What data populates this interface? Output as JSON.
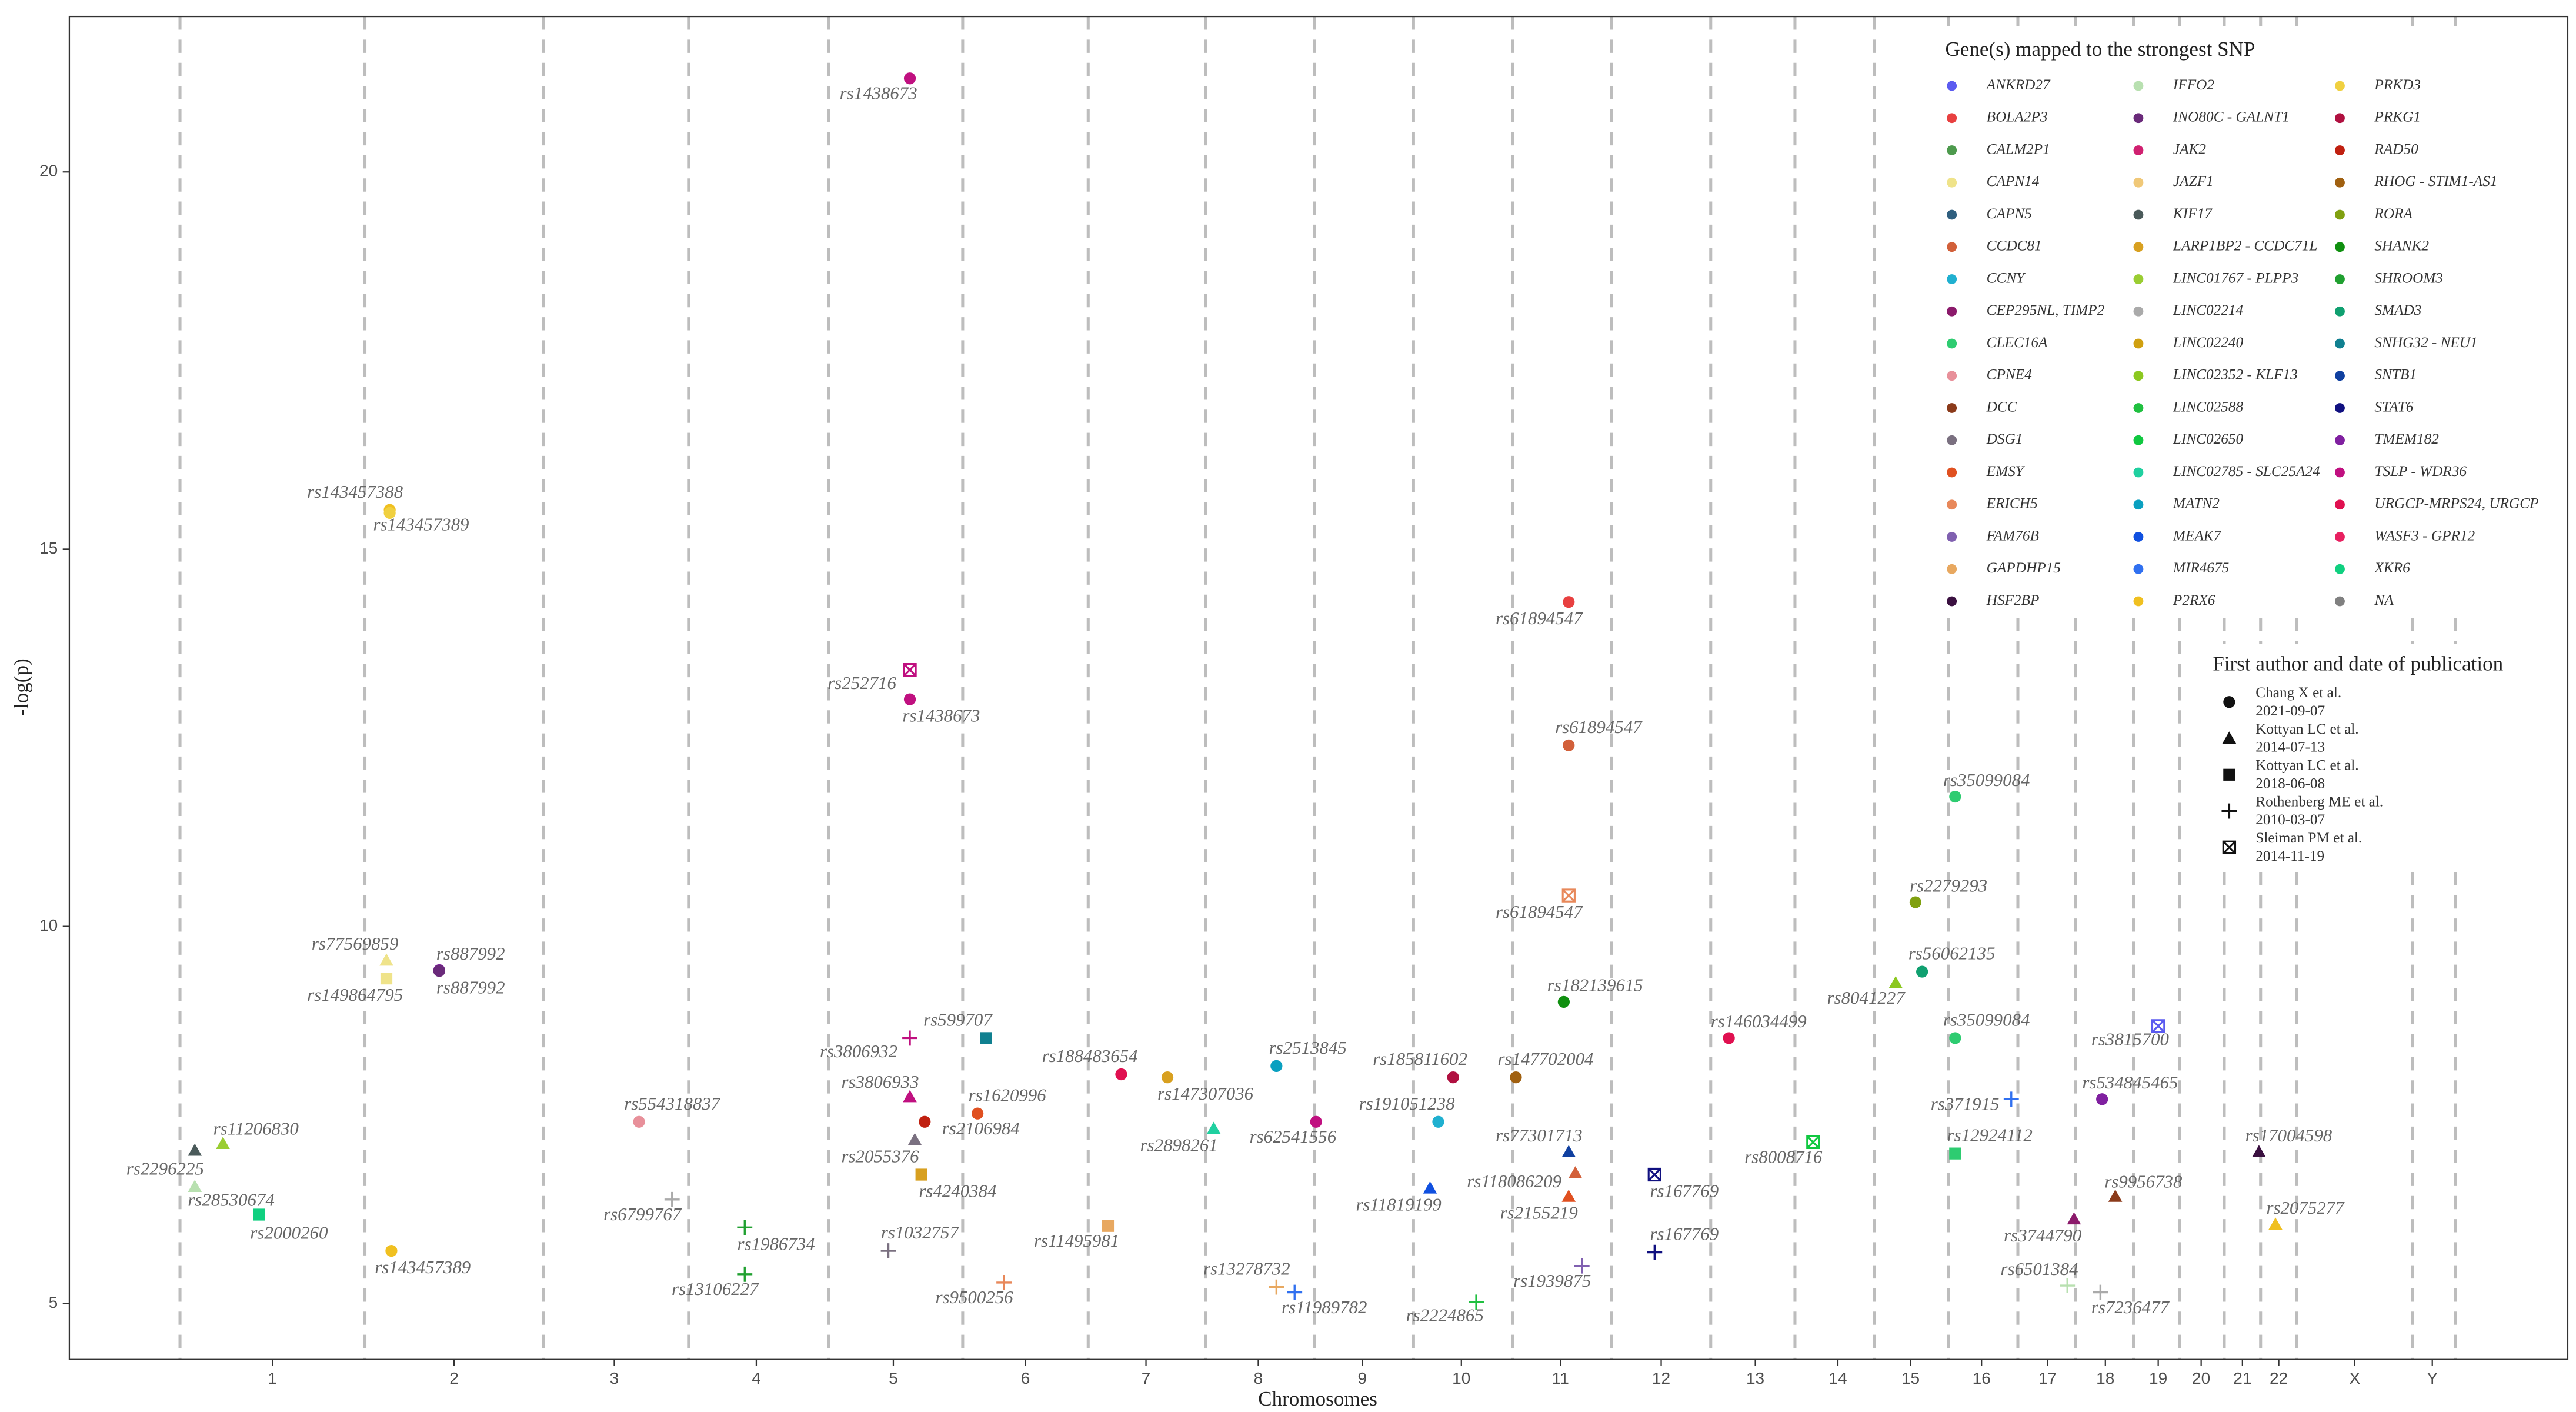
{
  "chart_data": {
    "type": "scatter",
    "xlabel": "Chromosomes",
    "ylabel": "-log(p)",
    "xlim": [
      42,
      1555
    ],
    "ylim": [
      4.26,
      22.06
    ],
    "yticks": [
      5,
      10,
      15,
      20
    ],
    "xticks": [
      {
        "value": 165,
        "label": "1"
      },
      {
        "value": 275,
        "label": "2"
      },
      {
        "value": 372,
        "label": "3"
      },
      {
        "value": 458,
        "label": "4"
      },
      {
        "value": 541,
        "label": "5"
      },
      {
        "value": 621,
        "label": "6"
      },
      {
        "value": 694,
        "label": "7"
      },
      {
        "value": 762,
        "label": "8"
      },
      {
        "value": 825,
        "label": "9"
      },
      {
        "value": 885,
        "label": "10"
      },
      {
        "value": 945,
        "label": "11"
      },
      {
        "value": 1006,
        "label": "12"
      },
      {
        "value": 1063,
        "label": "13"
      },
      {
        "value": 1113,
        "label": "14"
      },
      {
        "value": 1157,
        "label": "15"
      },
      {
        "value": 1200,
        "label": "16"
      },
      {
        "value": 1240,
        "label": "17"
      },
      {
        "value": 1275,
        "label": "18"
      },
      {
        "value": 1307,
        "label": "19"
      },
      {
        "value": 1333,
        "label": "20"
      },
      {
        "value": 1358,
        "label": "21"
      },
      {
        "value": 1380,
        "label": "22"
      },
      {
        "value": 1426,
        "label": "X"
      },
      {
        "value": 1473,
        "label": "Y"
      }
    ],
    "vlines": [
      109,
      221,
      329,
      417,
      502,
      583,
      659,
      730,
      796,
      856,
      916,
      976,
      1036,
      1087,
      1135,
      1180,
      1222,
      1257,
      1292,
      1320,
      1347,
      1369,
      1391,
      1461,
      1487
    ],
    "gene_legend_title": "Gene(s) mapped to the strongest SNP",
    "genes": [
      {
        "name": "ANKRD27",
        "color": "#5b5bf0"
      },
      {
        "name": "BOLA2P3",
        "color": "#e84040"
      },
      {
        "name": "CALM2P1",
        "color": "#4d9a4d"
      },
      {
        "name": "CAPN14",
        "color": "#efe38a"
      },
      {
        "name": "CAPN5",
        "color": "#2f5f7f"
      },
      {
        "name": "CCDC81",
        "color": "#d2603a"
      },
      {
        "name": "CCNY",
        "color": "#20b0d0"
      },
      {
        "name": "CEP295NL, TIMP2",
        "color": "#8b1a6b"
      },
      {
        "name": "CLEC16A",
        "color": "#2ecc71"
      },
      {
        "name": "CPNE4",
        "color": "#e8909a"
      },
      {
        "name": "DCC",
        "color": "#8b3a1a"
      },
      {
        "name": "DSG1",
        "color": "#7a7080"
      },
      {
        "name": "EMSY",
        "color": "#e05020"
      },
      {
        "name": "ERICH5",
        "color": "#e8885a"
      },
      {
        "name": "FAM76B",
        "color": "#8060b0"
      },
      {
        "name": "GAPDHP15",
        "color": "#e8a860"
      },
      {
        "name": "HSF2BP",
        "color": "#3a1040"
      },
      {
        "name": "IFFO2",
        "color": "#b8e0b0"
      },
      {
        "name": "INO80C - GALNT1",
        "color": "#6a2a7a"
      },
      {
        "name": "JAK2",
        "color": "#d02070"
      },
      {
        "name": "JAZF1",
        "color": "#f0c878"
      },
      {
        "name": "KIF17",
        "color": "#4a5a5a"
      },
      {
        "name": "LARP1BP2 - CCDC71L",
        "color": "#d8a020"
      },
      {
        "name": "LINC01767 - PLPP3",
        "color": "#9acd32"
      },
      {
        "name": "LINC02214",
        "color": "#aaaaaa"
      },
      {
        "name": "LINC02240",
        "color": "#d0a010"
      },
      {
        "name": "LINC02352 - KLF13",
        "color": "#8cc820"
      },
      {
        "name": "LINC02588",
        "color": "#20c040"
      },
      {
        "name": "LINC02650",
        "color": "#10c840"
      },
      {
        "name": "LINC02785 - SLC25A24",
        "color": "#20d0a0"
      },
      {
        "name": "MATN2",
        "color": "#0aa0c0"
      },
      {
        "name": "MEAK7",
        "color": "#1050e0"
      },
      {
        "name": "MIR4675",
        "color": "#3070f0"
      },
      {
        "name": "P2RX6",
        "color": "#f0c020"
      },
      {
        "name": "PRKD3",
        "color": "#f0d040"
      },
      {
        "name": "PRKG1",
        "color": "#b01040"
      },
      {
        "name": "RAD50",
        "color": "#c02010"
      },
      {
        "name": "RHOG - STIM1-AS1",
        "color": "#a06010"
      },
      {
        "name": "RORA",
        "color": "#80a010"
      },
      {
        "name": "SHANK2",
        "color": "#109010"
      },
      {
        "name": "SHROOM3",
        "color": "#20a030"
      },
      {
        "name": "SMAD3",
        "color": "#10a070"
      },
      {
        "name": "SNHG32 - NEU1",
        "color": "#108090"
      },
      {
        "name": "SNTB1",
        "color": "#1040a0"
      },
      {
        "name": "STAT6",
        "color": "#101080"
      },
      {
        "name": "TMEM182",
        "color": "#8020a0"
      },
      {
        "name": "TSLP - WDR36",
        "color": "#c01080"
      },
      {
        "name": "URGCP-MRPS24, URGCP",
        "color": "#e01050"
      },
      {
        "name": "WASF3 - GPR12",
        "color": "#e82060"
      },
      {
        "name": "XKR6",
        "color": "#10d080"
      },
      {
        "name": "NA",
        "color": "#808080"
      }
    ],
    "author_legend_title": "First author and date of publication",
    "authors": [
      {
        "name": "Chang X et al.",
        "date": "2021-09-07",
        "shape": "circle"
      },
      {
        "name": "Kottyan LC et al.",
        "date": "2014-07-13",
        "shape": "triangle"
      },
      {
        "name": "Kottyan LC et al.",
        "date": "2018-06-08",
        "shape": "square"
      },
      {
        "name": "Rothenberg ME et al.",
        "date": "2010-03-07",
        "shape": "plus"
      },
      {
        "name": "Sleiman PM et al.",
        "date": "2014-11-19",
        "shape": "boxed-x"
      }
    ],
    "points": [
      {
        "label": "rs2296225",
        "x": 118,
        "y": 7.03,
        "gene": "KIF17",
        "date": "2014-07-13"
      },
      {
        "label": "rs28530674",
        "x": 118,
        "y": 6.55,
        "gene": "IFFO2",
        "date": "2014-07-13"
      },
      {
        "label": "rs11206830",
        "x": 135,
        "y": 7.12,
        "gene": "LINC01767 - PLPP3",
        "date": "2014-07-13"
      },
      {
        "label": "rs2000260",
        "x": 157,
        "y": 6.18,
        "gene": "XKR6",
        "date": "2018-06-08"
      },
      {
        "label": "rs143457388",
        "x": 236,
        "y": 15.52,
        "gene": "P2RX6",
        "date": "2021-09-07"
      },
      {
        "label": "rs143457389",
        "x": 236,
        "y": 15.48,
        "gene": "PRKD3",
        "date": "2021-09-07"
      },
      {
        "label": "rs77569859",
        "x": 234,
        "y": 9.55,
        "gene": "CAPN14",
        "date": "2014-07-13"
      },
      {
        "label": "rs149864795",
        "x": 234,
        "y": 9.31,
        "gene": "CAPN14",
        "date": "2018-06-08"
      },
      {
        "label": "rs887992",
        "x": 266,
        "y": 9.42,
        "gene": "TMEM182",
        "date": "2021-09-07"
      },
      {
        "label": "rs887992",
        "x": 266,
        "y": 9.41,
        "gene": "INO80C - GALNT1",
        "date": "2021-09-07"
      },
      {
        "label": "rs143457389",
        "x": 237,
        "y": 5.7,
        "gene": "P2RX6",
        "date": "2021-09-07"
      },
      {
        "label": "rs554318837",
        "x": 387,
        "y": 7.41,
        "gene": "CPNE4",
        "date": "2021-09-07"
      },
      {
        "label": "rs6799767",
        "x": 407,
        "y": 6.38,
        "gene": "LINC02214",
        "date": "2010-03-07"
      },
      {
        "label": "rs1986734",
        "x": 451,
        "y": 6.01,
        "gene": "SHROOM3",
        "date": "2010-03-07"
      },
      {
        "label": "rs13106227",
        "x": 451,
        "y": 5.39,
        "gene": "SHROOM3",
        "date": "2010-03-07"
      },
      {
        "label": "rs1438673",
        "x": 551,
        "y": 21.24,
        "gene": "TSLP - WDR36",
        "date": "2021-09-07"
      },
      {
        "label": "rs252716",
        "x": 551,
        "y": 13.4,
        "gene": "TSLP - WDR36",
        "date": "2014-11-19"
      },
      {
        "label": "rs1438673",
        "x": 551,
        "y": 13.01,
        "gene": "TSLP - WDR36",
        "date": "2021-09-07"
      },
      {
        "label": "rs3806932",
        "x": 551,
        "y": 8.52,
        "gene": "TSLP - WDR36",
        "date": "2010-03-07"
      },
      {
        "label": "rs599707",
        "x": 597,
        "y": 8.52,
        "gene": "SNHG32 - NEU1",
        "date": "2018-06-08"
      },
      {
        "label": "rs3806933",
        "x": 551,
        "y": 7.74,
        "gene": "TSLP - WDR36",
        "date": "2014-07-13"
      },
      {
        "label": "rs1620996",
        "x": 592,
        "y": 7.52,
        "gene": "EMSY",
        "date": "2021-09-07"
      },
      {
        "label": "rs2106984",
        "x": 560,
        "y": 7.41,
        "gene": "RAD50",
        "date": "2021-09-07"
      },
      {
        "label": "rs2055376",
        "x": 554,
        "y": 7.17,
        "gene": "DSG1",
        "date": "2014-07-13"
      },
      {
        "label": "rs4240384",
        "x": 558,
        "y": 6.71,
        "gene": "LARP1BP2 - CCDC71L",
        "date": "2018-06-08"
      },
      {
        "label": "rs1032757",
        "x": 538,
        "y": 5.7,
        "gene": "DSG1",
        "date": "2010-03-07"
      },
      {
        "label": "rs9500256",
        "x": 608,
        "y": 5.28,
        "gene": "ERICH5",
        "date": "2010-03-07"
      },
      {
        "label": "rs188483654",
        "x": 679,
        "y": 8.04,
        "gene": "URGCP-MRPS24, URGCP",
        "date": "2021-09-07"
      },
      {
        "label": "rs147307036",
        "x": 707,
        "y": 8.0,
        "gene": "LARP1BP2 - CCDC71L",
        "date": "2021-09-07"
      },
      {
        "label": "rs2898261",
        "x": 735,
        "y": 7.32,
        "gene": "LINC02785 - SLC25A24",
        "date": "2014-07-13"
      },
      {
        "label": "rs11495981",
        "x": 671,
        "y": 6.03,
        "gene": "GAPDHP15",
        "date": "2018-06-08"
      },
      {
        "label": "rs2513845",
        "x": 773,
        "y": 8.15,
        "gene": "MATN2",
        "date": "2021-09-07"
      },
      {
        "label": "rs62541556",
        "x": 797,
        "y": 7.41,
        "gene": "TSLP - WDR36",
        "date": "2021-09-07"
      },
      {
        "label": "rs13278732",
        "x": 773,
        "y": 5.22,
        "gene": "GAPDHP15",
        "date": "2010-03-07"
      },
      {
        "label": "rs11989782",
        "x": 784,
        "y": 5.15,
        "gene": "MIR4675",
        "date": "2010-03-07"
      },
      {
        "label": "rs185811602",
        "x": 880,
        "y": 8.0,
        "gene": "PRKG1",
        "date": "2021-09-07"
      },
      {
        "label": "rs191051238",
        "x": 871,
        "y": 7.41,
        "gene": "CCNY",
        "date": "2021-09-07"
      },
      {
        "label": "rs11819199",
        "x": 866,
        "y": 6.53,
        "gene": "MEAK7",
        "date": "2014-07-13"
      },
      {
        "label": "rs2224865",
        "x": 894,
        "y": 5.02,
        "gene": "LINC02588",
        "date": "2010-03-07"
      },
      {
        "label": "rs147702004",
        "x": 918,
        "y": 8.0,
        "gene": "RHOG - STIM1-AS1",
        "date": "2021-09-07"
      },
      {
        "label": "rs61894547",
        "x": 950,
        "y": 14.3,
        "gene": "BOLA2P3",
        "date": "2021-09-07"
      },
      {
        "label": "rs61894547",
        "x": 950,
        "y": 12.4,
        "gene": "CCDC81",
        "date": "2021-09-07"
      },
      {
        "label": "rs61894547",
        "x": 950,
        "y": 10.41,
        "gene": "ERICH5",
        "date": "2014-11-19"
      },
      {
        "label": "rs182139615",
        "x": 947,
        "y": 9.0,
        "gene": "SHANK2",
        "date": "2021-09-07"
      },
      {
        "label": "rs77301713",
        "x": 950,
        "y": 7.01,
        "gene": "SNTB1",
        "date": "2014-07-13"
      },
      {
        "label": "rs118086209",
        "x": 954,
        "y": 6.73,
        "gene": "CCDC81",
        "date": "2014-07-13"
      },
      {
        "label": "rs2155219",
        "x": 950,
        "y": 6.42,
        "gene": "EMSY",
        "date": "2014-07-13"
      },
      {
        "label": "rs1939875",
        "x": 958,
        "y": 5.5,
        "gene": "FAM76B",
        "date": "2010-03-07"
      },
      {
        "label": "rs167769",
        "x": 1002,
        "y": 6.71,
        "gene": "STAT6",
        "date": "2014-11-19"
      },
      {
        "label": "rs167769",
        "x": 1002,
        "y": 5.68,
        "gene": "STAT6",
        "date": "2010-03-07"
      },
      {
        "label": "rs146034499",
        "x": 1047,
        "y": 8.52,
        "gene": "URGCP-MRPS24, URGCP",
        "date": "2021-09-07"
      },
      {
        "label": "rs8008716",
        "x": 1098,
        "y": 7.14,
        "gene": "LINC02650",
        "date": "2014-11-19"
      },
      {
        "label": "rs2279293",
        "x": 1160,
        "y": 10.32,
        "gene": "RORA",
        "date": "2021-09-07"
      },
      {
        "label": "rs8041227",
        "x": 1148,
        "y": 9.25,
        "gene": "LINC02352 - KLF13",
        "date": "2014-07-13"
      },
      {
        "label": "rs56062135",
        "x": 1164,
        "y": 9.4,
        "gene": "SMAD3",
        "date": "2021-09-07"
      },
      {
        "label": "rs35099084",
        "x": 1184,
        "y": 11.72,
        "gene": "CLEC16A",
        "date": "2021-09-07"
      },
      {
        "label": "rs35099084",
        "x": 1184,
        "y": 8.52,
        "gene": "CLEC16A",
        "date": "2021-09-07"
      },
      {
        "label": "rs371915",
        "x": 1218,
        "y": 7.71,
        "gene": "MIR4675",
        "date": "2010-03-07"
      },
      {
        "label": "rs12924112",
        "x": 1184,
        "y": 6.99,
        "gene": "CLEC16A",
        "date": "2018-06-08"
      },
      {
        "label": "rs3815700",
        "x": 1307,
        "y": 8.68,
        "gene": "ANKRD27",
        "date": "2014-11-19"
      },
      {
        "label": "rs534845465",
        "x": 1273,
        "y": 7.71,
        "gene": "TMEM182",
        "date": "2021-09-07"
      },
      {
        "label": "rs9956738",
        "x": 1281,
        "y": 6.42,
        "gene": "DCC",
        "date": "2014-07-13"
      },
      {
        "label": "rs3744790",
        "x": 1256,
        "y": 6.12,
        "gene": "CEP295NL, TIMP2",
        "date": "2014-07-13"
      },
      {
        "label": "rs6501384",
        "x": 1252,
        "y": 5.24,
        "gene": "IFFO2",
        "date": "2010-03-07"
      },
      {
        "label": "rs7236477",
        "x": 1272,
        "y": 5.15,
        "gene": "LINC02214",
        "date": "2010-03-07"
      },
      {
        "label": "rs17004598",
        "x": 1368,
        "y": 7.01,
        "gene": "HSF2BP",
        "date": "2014-07-13"
      },
      {
        "label": "rs2075277",
        "x": 1378,
        "y": 6.05,
        "gene": "P2RX6",
        "date": "2014-07-13"
      }
    ]
  }
}
